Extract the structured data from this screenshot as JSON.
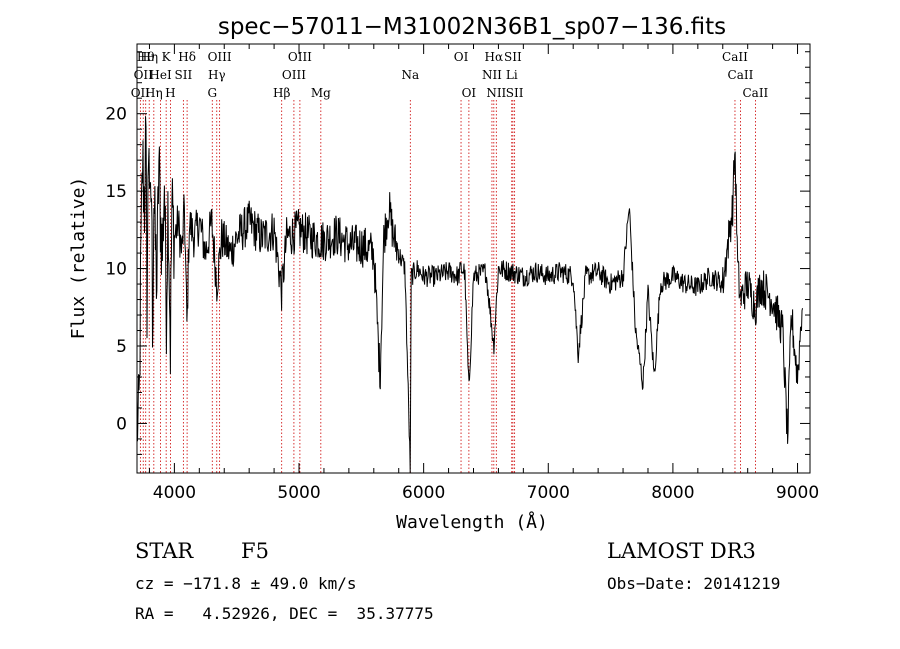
{
  "chart_data": {
    "type": "line",
    "title": "spec−57011−M31002N36B1_sp07−136.fits",
    "xlabel": "Wavelength (Å)",
    "ylabel": "Flux (relative)",
    "xlim": [
      3700,
      9100
    ],
    "ylim": [
      -3.2,
      24.5
    ],
    "x_ticks": [
      4000,
      5000,
      6000,
      7000,
      8000,
      9000
    ],
    "y_ticks": [
      0,
      5,
      10,
      15,
      20
    ],
    "line_color": "#000000",
    "marker_color": "#cc0000",
    "spectrum_keypoints": [
      [
        3700,
        0.5
      ],
      [
        3710,
        -0.5
      ],
      [
        3720,
        2
      ],
      [
        3730,
        10
      ],
      [
        3745,
        17
      ],
      [
        3760,
        14
      ],
      [
        3770,
        19
      ],
      [
        3780,
        8
      ],
      [
        3795,
        20
      ],
      [
        3805,
        12
      ],
      [
        3815,
        16
      ],
      [
        3825,
        6
      ],
      [
        3835,
        15
      ],
      [
        3845,
        12
      ],
      [
        3860,
        9
      ],
      [
        3875,
        17
      ],
      [
        3890,
        13
      ],
      [
        3905,
        11
      ],
      [
        3920,
        16
      ],
      [
        3935,
        7
      ],
      [
        3950,
        15
      ],
      [
        3968,
        5
      ],
      [
        3980,
        14
      ],
      [
        4000,
        12
      ],
      [
        4030,
        13
      ],
      [
        4060,
        11
      ],
      [
        4080,
        14
      ],
      [
        4101,
        6
      ],
      [
        4120,
        13
      ],
      [
        4160,
        12
      ],
      [
        4200,
        13
      ],
      [
        4250,
        11
      ],
      [
        4300,
        13
      ],
      [
        4340,
        9
      ],
      [
        4380,
        12
      ],
      [
        4450,
        11
      ],
      [
        4500,
        12
      ],
      [
        4600,
        13
      ],
      [
        4700,
        12
      ],
      [
        4800,
        12.5
      ],
      [
        4861,
        8.5
      ],
      [
        4900,
        12
      ],
      [
        5000,
        12.5
      ],
      [
        5100,
        12
      ],
      [
        5200,
        11.8
      ],
      [
        5300,
        12.2
      ],
      [
        5400,
        11.5
      ],
      [
        5500,
        11.5
      ],
      [
        5600,
        11
      ],
      [
        5650,
        3
      ],
      [
        5680,
        12
      ],
      [
        5720,
        14
      ],
      [
        5760,
        12
      ],
      [
        5800,
        11
      ],
      [
        5850,
        10
      ],
      [
        5893,
        -3.2
      ],
      [
        5900,
        9.5
      ],
      [
        5950,
        10
      ],
      [
        6000,
        9.5
      ],
      [
        6100,
        9.5
      ],
      [
        6200,
        9.8
      ],
      [
        6280,
        9.5
      ],
      [
        6300,
        10
      ],
      [
        6330,
        9.8
      ],
      [
        6363,
        2
      ],
      [
        6400,
        9.5
      ],
      [
        6500,
        9.8
      ],
      [
        6563,
        5
      ],
      [
        6600,
        10
      ],
      [
        6700,
        9.8
      ],
      [
        6800,
        9.5
      ],
      [
        6900,
        9.8
      ],
      [
        7000,
        9.5
      ],
      [
        7100,
        9.8
      ],
      [
        7200,
        9.5
      ],
      [
        7240,
        4.5
      ],
      [
        7300,
        9.5
      ],
      [
        7400,
        9.8
      ],
      [
        7500,
        9
      ],
      [
        7600,
        9.5
      ],
      [
        7650,
        14
      ],
      [
        7700,
        6
      ],
      [
        7760,
        2.5
      ],
      [
        7800,
        8.5
      ],
      [
        7850,
        3
      ],
      [
        7900,
        9
      ],
      [
        8000,
        9.5
      ],
      [
        8100,
        9
      ],
      [
        8200,
        8.8
      ],
      [
        8300,
        9.5
      ],
      [
        8400,
        9
      ],
      [
        8480,
        14
      ],
      [
        8498,
        18
      ],
      [
        8520,
        10
      ],
      [
        8542,
        8
      ],
      [
        8600,
        9
      ],
      [
        8662,
        7.5
      ],
      [
        8700,
        9
      ],
      [
        8800,
        8
      ],
      [
        8880,
        6
      ],
      [
        8920,
        -1
      ],
      [
        8950,
        7
      ],
      [
        9000,
        3
      ],
      [
        9040,
        8
      ]
    ],
    "line_markers": [
      {
        "x": 3727,
        "row": 3,
        "label": "OII"
      },
      {
        "x": 3750,
        "row": 2,
        "label": "OII"
      },
      {
        "x": 3770,
        "row": 1,
        "label": "Hθ"
      },
      {
        "x": 3798,
        "row": 1,
        "label": "Hη"
      },
      {
        "x": 3835,
        "row": 3,
        "label": "Hη"
      },
      {
        "x": 3889,
        "row": 2,
        "label": "HeI"
      },
      {
        "x": 3934,
        "row": 1,
        "label": "K"
      },
      {
        "x": 3968,
        "row": 3,
        "label": "H"
      },
      {
        "x": 4072,
        "row": 2,
        "label": "SII"
      },
      {
        "x": 4102,
        "row": 1,
        "label": "Hδ"
      },
      {
        "x": 4304,
        "row": 3,
        "label": "G"
      },
      {
        "x": 4340,
        "row": 2,
        "label": "Hγ"
      },
      {
        "x": 4363,
        "row": 1,
        "label": "OIII"
      },
      {
        "x": 4861,
        "row": 3,
        "label": "Hβ"
      },
      {
        "x": 4959,
        "row": 2,
        "label": "OIII"
      },
      {
        "x": 5007,
        "row": 1,
        "label": "OIII"
      },
      {
        "x": 5175,
        "row": 3,
        "label": "Mg"
      },
      {
        "x": 5893,
        "row": 2,
        "label": "Na"
      },
      {
        "x": 6300,
        "row": 1,
        "label": "OI"
      },
      {
        "x": 6363,
        "row": 3,
        "label": "OI"
      },
      {
        "x": 6548,
        "row": 2,
        "label": "NII"
      },
      {
        "x": 6563,
        "row": 1,
        "label": "Hα"
      },
      {
        "x": 6583,
        "row": 3,
        "label": "NII"
      },
      {
        "x": 6707,
        "row": 2,
        "label": "Li"
      },
      {
        "x": 6716,
        "row": 1,
        "label": "SII"
      },
      {
        "x": 6730,
        "row": 3,
        "label": "SII"
      },
      {
        "x": 8498,
        "row": 1,
        "label": "CaII"
      },
      {
        "x": 8542,
        "row": 2,
        "label": "CaII"
      },
      {
        "x": 8662,
        "row": 3,
        "label": "CaII"
      }
    ]
  },
  "info": {
    "object_class": "STAR",
    "subclass": "F5",
    "cz": "cz = −171.8 ± 49.0 km/s",
    "coords": "RA =   4.52926, DEC =  35.37775",
    "survey": "LAMOST DR3",
    "obs_date": "Obs−Date: 20141219"
  }
}
